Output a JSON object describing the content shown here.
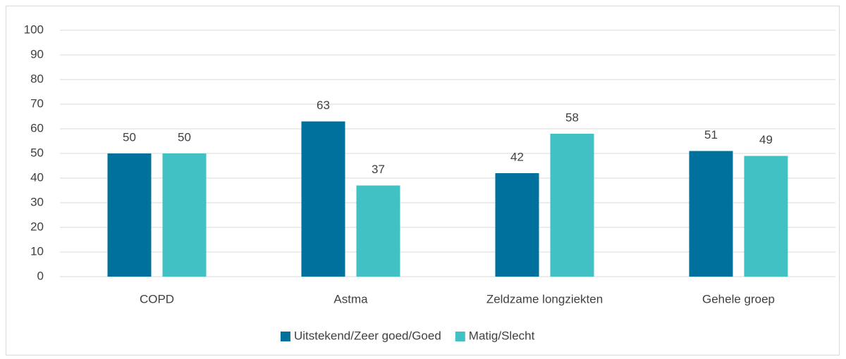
{
  "chart_data": {
    "type": "bar",
    "categories": [
      "COPD",
      "Astma",
      "Zeldzame longziekten",
      "Gehele groep"
    ],
    "series": [
      {
        "name": "Uitstekend/Zeer goed/Goed",
        "color": "#00719c",
        "values": [
          50,
          63,
          42,
          51
        ]
      },
      {
        "name": "Matig/Slecht",
        "color": "#41c1c4",
        "values": [
          50,
          37,
          58,
          49
        ]
      }
    ],
    "ylim": [
      0,
      100
    ],
    "yticks": [
      0,
      10,
      20,
      30,
      40,
      50,
      60,
      70,
      80,
      90,
      100
    ],
    "grid": true,
    "legend": "bottom"
  }
}
